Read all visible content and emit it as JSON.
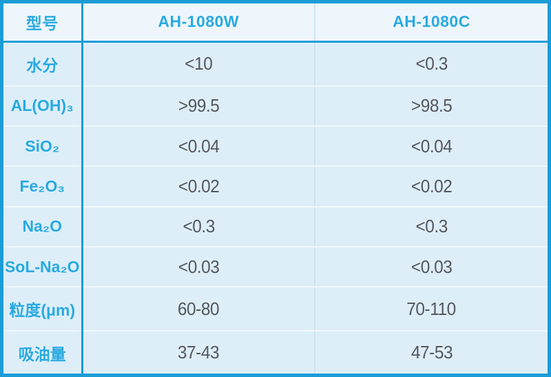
{
  "colors": {
    "border-cyan": "#1b9cd6",
    "text-cyan": "#29aae1",
    "value-gray": "#54575c",
    "header-bg": "#eef6fc",
    "cell-bg": "#ddeef9",
    "row-sep": "#f0f8fd",
    "col-sep": "#cfe4f1"
  },
  "table": {
    "header": {
      "model": "型号",
      "col_w": "AH-1080W",
      "col_c": "AH-1080C"
    },
    "rows": [
      {
        "label": "水分",
        "w": "<10",
        "c": "<0.3"
      },
      {
        "label": "AL(OH)₃",
        "w": ">99.5",
        "c": ">98.5"
      },
      {
        "label": "SiO₂",
        "w": "<0.04",
        "c": "<0.04"
      },
      {
        "label": "Fe₂O₃",
        "w": "<0.02",
        "c": "<0.02"
      },
      {
        "label": "Na₂O",
        "w": "<0.3",
        "c": "<0.3"
      },
      {
        "label": "SoL-Na₂O",
        "w": "<0.03",
        "c": "<0.03"
      },
      {
        "label": "粒度(μm)",
        "w": "60-80",
        "c": "70-110"
      },
      {
        "label": "吸油量",
        "w": "37-43",
        "c": "47-53"
      }
    ]
  },
  "chart_data": {
    "type": "table",
    "title": "",
    "columns": [
      "型号",
      "AH-1080W",
      "AH-1080C"
    ],
    "rows": [
      [
        "水分",
        "<10",
        "<0.3"
      ],
      [
        "AL(OH)₃",
        ">99.5",
        ">98.5"
      ],
      [
        "SiO₂",
        "<0.04",
        "<0.04"
      ],
      [
        "Fe₂O₃",
        "<0.02",
        "<0.02"
      ],
      [
        "Na₂O",
        "<0.3",
        "<0.3"
      ],
      [
        "SoL-Na₂O",
        "<0.03",
        "<0.03"
      ],
      [
        "粒度(μm)",
        "60-80",
        "70-110"
      ],
      [
        "吸油量",
        "37-43",
        "47-53"
      ]
    ]
  }
}
